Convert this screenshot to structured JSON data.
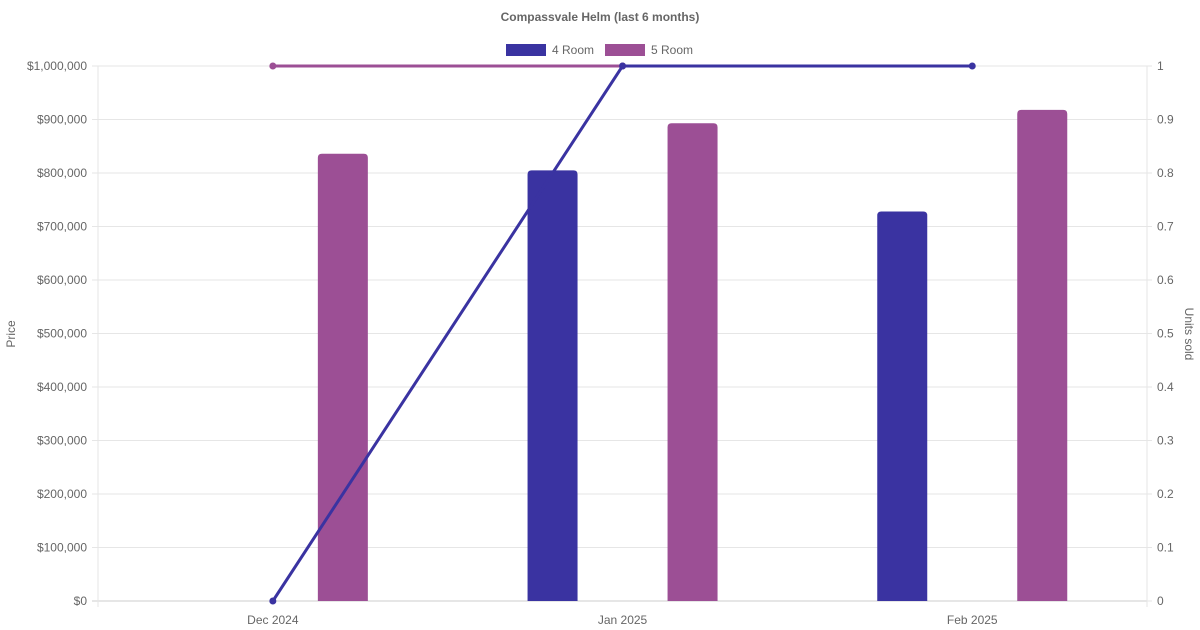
{
  "chart_data": {
    "type": "bar",
    "title": "Compassvale Helm (last 6 months)",
    "categories": [
      "Dec 2024",
      "Jan 2025",
      "Feb 2025"
    ],
    "y_left": {
      "label": "Price",
      "range": [
        0,
        1000000
      ],
      "ticks": [
        "$0",
        "$100,000",
        "$200,000",
        "$300,000",
        "$400,000",
        "$500,000",
        "$600,000",
        "$700,000",
        "$800,000",
        "$900,000",
        "$1,000,000"
      ],
      "tick_values": [
        0,
        100000,
        200000,
        300000,
        400000,
        500000,
        600000,
        700000,
        800000,
        900000,
        1000000
      ]
    },
    "y_right": {
      "label": "Units sold",
      "range": [
        0,
        1
      ],
      "ticks": [
        "0",
        "0.1",
        "0.2",
        "0.3",
        "0.4",
        "0.5",
        "0.6",
        "0.7",
        "0.8",
        "0.9",
        "1"
      ],
      "tick_values": [
        0,
        0.1,
        0.2,
        0.3,
        0.4,
        0.5,
        0.6,
        0.7,
        0.8,
        0.9,
        1
      ]
    },
    "grid": true,
    "legend_position": "top-center",
    "legend": [
      {
        "name": "4 Room",
        "color": "#3a33a1"
      },
      {
        "name": "5 Room",
        "color": "#9c4f95"
      }
    ],
    "series": [
      {
        "name": "4 Room",
        "kind": "bar",
        "axis": "left",
        "color": "#3a33a1",
        "values": [
          null,
          805000,
          728000
        ]
      },
      {
        "name": "5 Room",
        "kind": "bar",
        "axis": "left",
        "color": "#9c4f95",
        "values": [
          836000,
          893000,
          918000
        ]
      },
      {
        "name": "4 Room",
        "kind": "line",
        "axis": "right",
        "color": "#3a33a1",
        "values": [
          0,
          1,
          1
        ]
      },
      {
        "name": "5 Room",
        "kind": "line",
        "axis": "right",
        "color": "#9c4f95",
        "values": [
          1,
          1,
          null
        ]
      }
    ]
  }
}
